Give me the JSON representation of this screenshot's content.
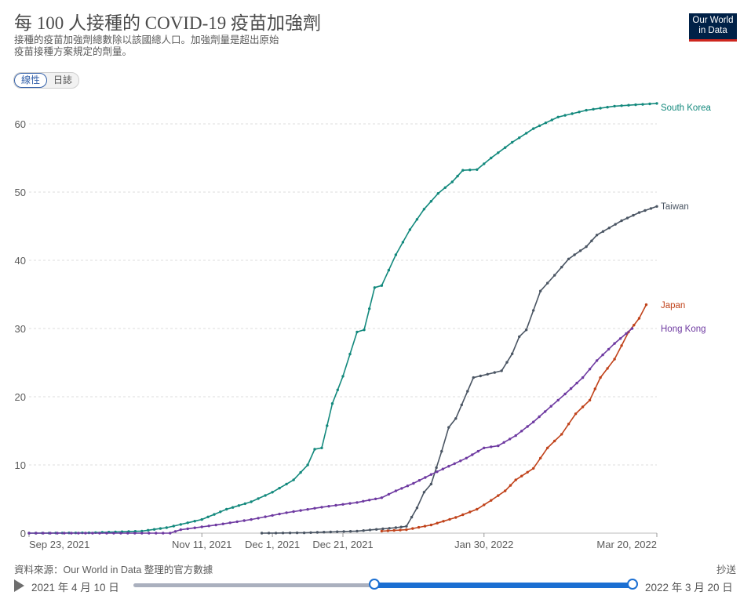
{
  "header": {
    "title": "每 100 人接種的 COVID-19 疫苗加強劑",
    "subtitle": "接種的疫苗加強劑總數除以該國總人口。加強劑量是超出原始疫苗接種方案規定的劑量。",
    "logo_line1": "Our World",
    "logo_line2": "in Data"
  },
  "toggle": {
    "linear_label": "線性",
    "log_label": "日誌"
  },
  "colors": {
    "south_korea": "#13897d",
    "taiwan": "#4a5563",
    "japan": "#c0421a",
    "hong_kong": "#6e3aa1",
    "grid": "#dddddd",
    "slider": "#1b6fd2"
  },
  "chart_data": {
    "type": "line",
    "y_ticks": [
      0,
      10,
      20,
      30,
      40,
      50,
      60
    ],
    "ylim": [
      0,
      64
    ],
    "x_ticks": [
      "Sep 23, 2021",
      "Nov 11, 2021",
      "Dec 1, 2021",
      "Dec 21, 2021",
      "Jan 30, 2022",
      "Mar 20, 2022"
    ],
    "x_range": [
      "2021-09-23",
      "2022-03-20"
    ],
    "grid": true,
    "series": [
      {
        "name": "South Korea",
        "color_key": "south_korea",
        "points": [
          [
            "2021-09-23",
            0
          ],
          [
            "2021-10-10",
            0.05
          ],
          [
            "2021-10-25",
            0.3
          ],
          [
            "2021-11-01",
            0.8
          ],
          [
            "2021-11-11",
            2.0
          ],
          [
            "2021-11-18",
            3.5
          ],
          [
            "2021-11-25",
            4.6
          ],
          [
            "2021-12-01",
            6.0
          ],
          [
            "2021-12-07",
            7.8
          ],
          [
            "2021-12-11",
            10.0
          ],
          [
            "2021-12-13",
            12.3
          ],
          [
            "2021-12-15",
            12.5
          ],
          [
            "2021-12-18",
            19.0
          ],
          [
            "2021-12-21",
            23.0
          ],
          [
            "2021-12-25",
            29.5
          ],
          [
            "2021-12-27",
            29.8
          ],
          [
            "2021-12-30",
            36.0
          ],
          [
            "2022-01-01",
            36.3
          ],
          [
            "2022-01-05",
            40.8
          ],
          [
            "2022-01-09",
            44.5
          ],
          [
            "2022-01-13",
            47.5
          ],
          [
            "2022-01-17",
            49.8
          ],
          [
            "2022-01-21",
            51.5
          ],
          [
            "2022-01-24",
            53.2
          ],
          [
            "2022-01-28",
            53.3
          ],
          [
            "2022-02-01",
            55.0
          ],
          [
            "2022-02-07",
            57.3
          ],
          [
            "2022-02-13",
            59.3
          ],
          [
            "2022-02-20",
            61.0
          ],
          [
            "2022-02-28",
            62.0
          ],
          [
            "2022-03-08",
            62.6
          ],
          [
            "2022-03-20",
            63.0
          ]
        ]
      },
      {
        "name": "Taiwan",
        "color_key": "taiwan",
        "points": [
          [
            "2021-11-28",
            0
          ],
          [
            "2021-12-10",
            0.05
          ],
          [
            "2021-12-25",
            0.3
          ],
          [
            "2022-01-05",
            0.8
          ],
          [
            "2022-01-08",
            1.0
          ],
          [
            "2022-01-11",
            3.7
          ],
          [
            "2022-01-13",
            6.0
          ],
          [
            "2022-01-15",
            7.2
          ],
          [
            "2022-01-18",
            12.0
          ],
          [
            "2022-01-20",
            15.5
          ],
          [
            "2022-01-22",
            16.8
          ],
          [
            "2022-01-27",
            22.8
          ],
          [
            "2022-02-04",
            23.8
          ],
          [
            "2022-02-07",
            26.3
          ],
          [
            "2022-02-09",
            28.8
          ],
          [
            "2022-02-11",
            29.8
          ],
          [
            "2022-02-15",
            35.5
          ],
          [
            "2022-02-19",
            37.8
          ],
          [
            "2022-02-23",
            40.2
          ],
          [
            "2022-02-28",
            42.0
          ],
          [
            "2022-03-03",
            43.7
          ],
          [
            "2022-03-10",
            45.8
          ],
          [
            "2022-03-15",
            47.0
          ],
          [
            "2022-03-20",
            47.9
          ]
        ]
      },
      {
        "name": "Japan",
        "color_key": "japan",
        "points": [
          [
            "2022-01-01",
            0.3
          ],
          [
            "2022-01-08",
            0.5
          ],
          [
            "2022-01-15",
            1.2
          ],
          [
            "2022-01-22",
            2.3
          ],
          [
            "2022-01-28",
            3.5
          ],
          [
            "2022-02-01",
            4.8
          ],
          [
            "2022-02-05",
            6.2
          ],
          [
            "2022-02-08",
            7.8
          ],
          [
            "2022-02-13",
            9.5
          ],
          [
            "2022-02-17",
            12.5
          ],
          [
            "2022-02-21",
            14.5
          ],
          [
            "2022-02-25",
            17.5
          ],
          [
            "2022-03-01",
            19.5
          ],
          [
            "2022-03-04",
            22.8
          ],
          [
            "2022-03-08",
            25.5
          ],
          [
            "2022-03-12",
            29.5
          ],
          [
            "2022-03-15",
            31.5
          ],
          [
            "2022-03-17",
            33.5
          ]
        ]
      },
      {
        "name": "Hong Kong",
        "color_key": "hong_kong",
        "points": [
          [
            "2021-09-23",
            0
          ],
          [
            "2021-11-02",
            0
          ],
          [
            "2021-11-05",
            0.5
          ],
          [
            "2021-11-15",
            1.2
          ],
          [
            "2021-11-25",
            2.0
          ],
          [
            "2021-12-05",
            3.0
          ],
          [
            "2021-12-15",
            3.8
          ],
          [
            "2021-12-25",
            4.5
          ],
          [
            "2022-01-01",
            5.2
          ],
          [
            "2022-01-05",
            6.2
          ],
          [
            "2022-01-10",
            7.3
          ],
          [
            "2022-01-15",
            8.6
          ],
          [
            "2022-01-20",
            9.8
          ],
          [
            "2022-01-25",
            11.0
          ],
          [
            "2022-01-30",
            12.5
          ],
          [
            "2022-02-03",
            12.8
          ],
          [
            "2022-02-08",
            14.3
          ],
          [
            "2022-02-13",
            16.3
          ],
          [
            "2022-02-18",
            18.6
          ],
          [
            "2022-02-22",
            20.4
          ],
          [
            "2022-02-27",
            22.8
          ],
          [
            "2022-03-03",
            25.3
          ],
          [
            "2022-03-08",
            27.8
          ],
          [
            "2022-03-13",
            30.0
          ]
        ]
      }
    ]
  },
  "footer": {
    "source": "資料來源：Our World in Data 整理的官方數據",
    "download_label": "抄送",
    "start_date": "2021 年 4 月 10 日",
    "end_date": "2022 年 3 月 20 日"
  }
}
